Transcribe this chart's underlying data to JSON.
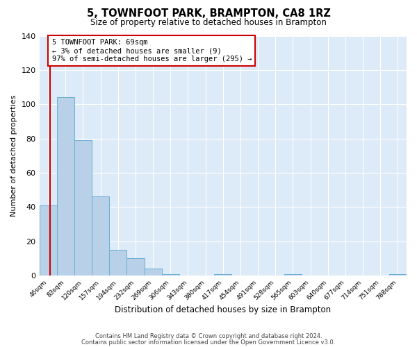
{
  "title": "5, TOWNFOOT PARK, BRAMPTON, CA8 1RZ",
  "subtitle": "Size of property relative to detached houses in Brampton",
  "xlabel": "Distribution of detached houses by size in Brampton",
  "ylabel": "Number of detached properties",
  "bin_labels": [
    "46sqm",
    "83sqm",
    "120sqm",
    "157sqm",
    "194sqm",
    "232sqm",
    "269sqm",
    "306sqm",
    "343sqm",
    "380sqm",
    "417sqm",
    "454sqm",
    "491sqm",
    "528sqm",
    "565sqm",
    "603sqm",
    "640sqm",
    "677sqm",
    "714sqm",
    "751sqm",
    "788sqm"
  ],
  "bar_heights": [
    41,
    104,
    79,
    46,
    15,
    10,
    4,
    1,
    0,
    0,
    1,
    0,
    0,
    0,
    1,
    0,
    0,
    0,
    0,
    0,
    1
  ],
  "bar_color": "#b8d0e8",
  "bar_edge_color": "#6aaed6",
  "ylim": [
    0,
    140
  ],
  "yticks": [
    0,
    20,
    40,
    60,
    80,
    100,
    120,
    140
  ],
  "property_line_color": "#cc0000",
  "annotation_text": "5 TOWNFOOT PARK: 69sqm\n← 3% of detached houses are smaller (9)\n97% of semi-detached houses are larger (295) →",
  "annotation_box_color": "#ffffff",
  "annotation_box_edge_color": "#cc0000",
  "footer_line1": "Contains HM Land Registry data © Crown copyright and database right 2024.",
  "footer_line2": "Contains public sector information licensed under the Open Government Licence v3.0.",
  "background_color": "#ffffff",
  "plot_bg_color": "#ddeaf7"
}
